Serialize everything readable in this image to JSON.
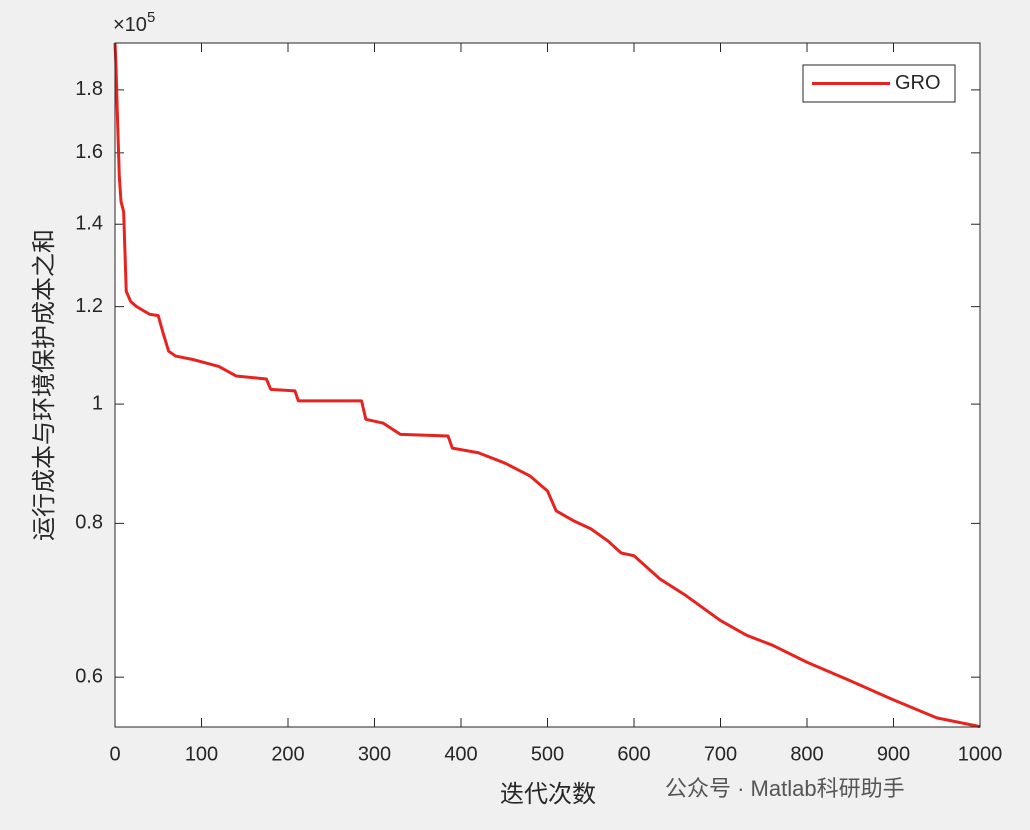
{
  "chart_data": {
    "type": "line",
    "xlabel": "迭代次数",
    "ylabel": "运行成本与环境保护成本之和",
    "y_multiplier_base": "×10",
    "y_multiplier_exponent": "5",
    "watermark": "公众号 · Matlab科研助手",
    "x": [
      0,
      1,
      3,
      5,
      7,
      10,
      13,
      18,
      25,
      40,
      50,
      55,
      62,
      70,
      90,
      120,
      140,
      175,
      180,
      208,
      212,
      285,
      290,
      310,
      330,
      385,
      390,
      420,
      450,
      480,
      500,
      510,
      530,
      550,
      570,
      585,
      600,
      630,
      660,
      700,
      730,
      760,
      800,
      850,
      900,
      950,
      1000
    ],
    "series": [
      {
        "name": "GRO",
        "color": "#e8231f",
        "values": [
          1.965,
          1.897,
          1.695,
          1.53,
          1.46,
          1.433,
          1.235,
          1.212,
          1.2,
          1.183,
          1.18,
          1.146,
          1.104,
          1.094,
          1.087,
          1.073,
          1.054,
          1.048,
          1.028,
          1.025,
          1.006,
          1.006,
          0.972,
          0.965,
          0.945,
          0.942,
          0.921,
          0.913,
          0.896,
          0.874,
          0.85,
          0.819,
          0.804,
          0.792,
          0.774,
          0.757,
          0.753,
          0.721,
          0.699,
          0.667,
          0.649,
          0.637,
          0.617,
          0.596,
          0.575,
          0.556,
          0.547
        ]
      }
    ],
    "xlim": [
      0,
      1000
    ],
    "xticks": [
      0,
      100,
      200,
      300,
      400,
      500,
      600,
      700,
      800,
      900,
      1000
    ],
    "ylim": [
      0.5466,
      1.965
    ],
    "yticks": [
      0.6,
      0.8,
      1,
      1.2,
      1.4,
      1.6,
      1.8
    ],
    "yscale": "log",
    "grid": false,
    "legend": "top-right"
  }
}
